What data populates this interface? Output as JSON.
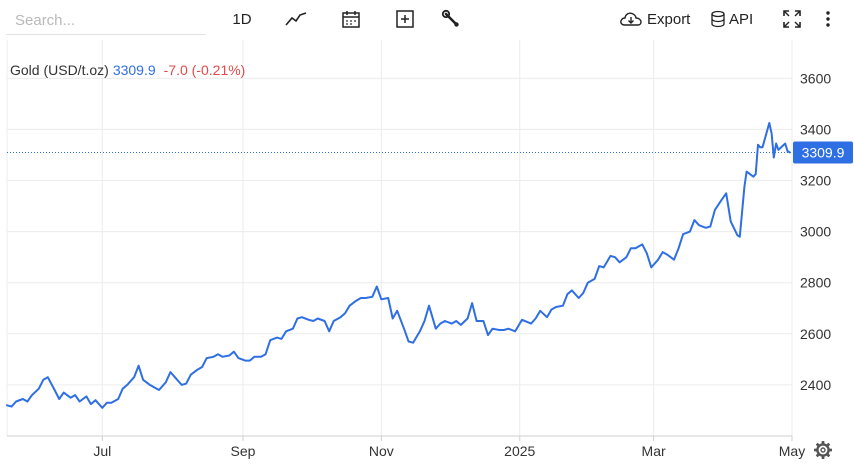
{
  "toolbar": {
    "search_placeholder": "Search...",
    "period_label": "1D",
    "export_label": "Export",
    "api_label": "API",
    "icons": [
      "line-chart-icon",
      "calendar-icon",
      "plus-square-icon",
      "wrench-icon",
      "cloud-download-icon",
      "database-icon",
      "expand-icon",
      "more-vertical-icon",
      "gear-icon"
    ]
  },
  "legend": {
    "name": "Gold (USD/t.oz)",
    "price": "3309.9",
    "change": "-7.0 (-0.21%)"
  },
  "colors": {
    "series": "#2f6fe4",
    "negative": "#e24a4a",
    "grid": "#ececec",
    "axis_text": "#333333"
  },
  "chart_data": {
    "type": "line",
    "title": "",
    "xlabel": "",
    "ylabel": "",
    "ylim": [
      2200,
      3750
    ],
    "xlim": [
      "2024-05-20",
      "2025-05-01"
    ],
    "yticks": [
      2400,
      2600,
      2800,
      3000,
      3200,
      3400,
      3600
    ],
    "yticklabels": [
      "2400",
      "2600",
      "2800",
      "3000",
      "3200",
      "3400",
      "3600"
    ],
    "xticks": [
      "2024-07-01",
      "2024-09-01",
      "2024-11-01",
      "2025-01-01",
      "2025-03-01",
      "2025-05-01"
    ],
    "xticklabels": [
      "Jul",
      "Sep",
      "Nov",
      "2025",
      "Mar",
      "May"
    ],
    "grid": true,
    "last_price": 3309.9,
    "last_price_label": "3309.9",
    "series": [
      {
        "points": [
          [
            "2024-05-20",
            2320
          ],
          [
            "2024-05-22",
            2315
          ],
          [
            "2024-05-24",
            2335
          ],
          [
            "2024-05-27",
            2345
          ],
          [
            "2024-05-29",
            2335
          ],
          [
            "2024-05-31",
            2360
          ],
          [
            "2024-06-03",
            2385
          ],
          [
            "2024-06-05",
            2420
          ],
          [
            "2024-06-07",
            2430
          ],
          [
            "2024-06-10",
            2380
          ],
          [
            "2024-06-12",
            2345
          ],
          [
            "2024-06-14",
            2370
          ],
          [
            "2024-06-17",
            2350
          ],
          [
            "2024-06-19",
            2360
          ],
          [
            "2024-06-21",
            2335
          ],
          [
            "2024-06-24",
            2355
          ],
          [
            "2024-06-26",
            2325
          ],
          [
            "2024-06-28",
            2340
          ],
          [
            "2024-07-01",
            2310
          ],
          [
            "2024-07-03",
            2330
          ],
          [
            "2024-07-05",
            2330
          ],
          [
            "2024-07-08",
            2345
          ],
          [
            "2024-07-10",
            2385
          ],
          [
            "2024-07-12",
            2400
          ],
          [
            "2024-07-15",
            2430
          ],
          [
            "2024-07-17",
            2475
          ],
          [
            "2024-07-19",
            2420
          ],
          [
            "2024-07-22",
            2400
          ],
          [
            "2024-07-24",
            2390
          ],
          [
            "2024-07-26",
            2380
          ],
          [
            "2024-07-29",
            2410
          ],
          [
            "2024-07-31",
            2450
          ],
          [
            "2024-08-02",
            2430
          ],
          [
            "2024-08-05",
            2400
          ],
          [
            "2024-08-07",
            2405
          ],
          [
            "2024-08-09",
            2440
          ],
          [
            "2024-08-12",
            2460
          ],
          [
            "2024-08-14",
            2470
          ],
          [
            "2024-08-16",
            2505
          ],
          [
            "2024-08-19",
            2510
          ],
          [
            "2024-08-21",
            2520
          ],
          [
            "2024-08-23",
            2510
          ],
          [
            "2024-08-26",
            2515
          ],
          [
            "2024-08-28",
            2530
          ],
          [
            "2024-08-30",
            2505
          ],
          [
            "2024-09-02",
            2495
          ],
          [
            "2024-09-04",
            2495
          ],
          [
            "2024-09-06",
            2510
          ],
          [
            "2024-09-09",
            2510
          ],
          [
            "2024-09-11",
            2520
          ],
          [
            "2024-09-13",
            2575
          ],
          [
            "2024-09-16",
            2585
          ],
          [
            "2024-09-18",
            2580
          ],
          [
            "2024-09-20",
            2610
          ],
          [
            "2024-09-23",
            2620
          ],
          [
            "2024-09-25",
            2660
          ],
          [
            "2024-09-27",
            2665
          ],
          [
            "2024-09-30",
            2655
          ],
          [
            "2024-10-02",
            2650
          ],
          [
            "2024-10-04",
            2660
          ],
          [
            "2024-10-07",
            2650
          ],
          [
            "2024-10-09",
            2610
          ],
          [
            "2024-10-11",
            2650
          ],
          [
            "2024-10-14",
            2665
          ],
          [
            "2024-10-16",
            2680
          ],
          [
            "2024-10-18",
            2710
          ],
          [
            "2024-10-21",
            2730
          ],
          [
            "2024-10-23",
            2740
          ],
          [
            "2024-10-25",
            2740
          ],
          [
            "2024-10-28",
            2745
          ],
          [
            "2024-10-30",
            2785
          ],
          [
            "2024-11-01",
            2735
          ],
          [
            "2024-11-04",
            2740
          ],
          [
            "2024-11-06",
            2660
          ],
          [
            "2024-11-08",
            2690
          ],
          [
            "2024-11-11",
            2620
          ],
          [
            "2024-11-13",
            2570
          ],
          [
            "2024-11-15",
            2565
          ],
          [
            "2024-11-18",
            2610
          ],
          [
            "2024-11-20",
            2650
          ],
          [
            "2024-11-22",
            2710
          ],
          [
            "2024-11-25",
            2620
          ],
          [
            "2024-11-27",
            2640
          ],
          [
            "2024-11-29",
            2650
          ],
          [
            "2024-12-02",
            2640
          ],
          [
            "2024-12-04",
            2650
          ],
          [
            "2024-12-06",
            2635
          ],
          [
            "2024-12-09",
            2660
          ],
          [
            "2024-12-11",
            2720
          ],
          [
            "2024-12-13",
            2650
          ],
          [
            "2024-12-16",
            2650
          ],
          [
            "2024-12-18",
            2595
          ],
          [
            "2024-12-20",
            2620
          ],
          [
            "2024-12-23",
            2615
          ],
          [
            "2024-12-25",
            2615
          ],
          [
            "2024-12-27",
            2620
          ],
          [
            "2024-12-30",
            2610
          ],
          [
            "2025-01-02",
            2655
          ],
          [
            "2025-01-06",
            2640
          ],
          [
            "2025-01-08",
            2660
          ],
          [
            "2025-01-10",
            2690
          ],
          [
            "2025-01-13",
            2665
          ],
          [
            "2025-01-15",
            2695
          ],
          [
            "2025-01-17",
            2705
          ],
          [
            "2025-01-20",
            2710
          ],
          [
            "2025-01-22",
            2755
          ],
          [
            "2025-01-24",
            2770
          ],
          [
            "2025-01-27",
            2740
          ],
          [
            "2025-01-29",
            2760
          ],
          [
            "2025-01-31",
            2800
          ],
          [
            "2025-02-03",
            2815
          ],
          [
            "2025-02-05",
            2865
          ],
          [
            "2025-02-07",
            2860
          ],
          [
            "2025-02-10",
            2905
          ],
          [
            "2025-02-12",
            2900
          ],
          [
            "2025-02-14",
            2880
          ],
          [
            "2025-02-17",
            2900
          ],
          [
            "2025-02-19",
            2935
          ],
          [
            "2025-02-21",
            2935
          ],
          [
            "2025-02-24",
            2950
          ],
          [
            "2025-02-26",
            2915
          ],
          [
            "2025-02-28",
            2860
          ],
          [
            "2025-03-03",
            2890
          ],
          [
            "2025-03-05",
            2920
          ],
          [
            "2025-03-07",
            2910
          ],
          [
            "2025-03-10",
            2890
          ],
          [
            "2025-03-12",
            2935
          ],
          [
            "2025-03-14",
            2990
          ],
          [
            "2025-03-17",
            3000
          ],
          [
            "2025-03-19",
            3045
          ],
          [
            "2025-03-21",
            3025
          ],
          [
            "2025-03-24",
            3015
          ],
          [
            "2025-03-26",
            3020
          ],
          [
            "2025-03-28",
            3085
          ],
          [
            "2025-03-31",
            3125
          ],
          [
            "2025-04-02",
            3150
          ],
          [
            "2025-04-04",
            3040
          ],
          [
            "2025-04-07",
            2985
          ],
          [
            "2025-04-08",
            2980
          ],
          [
            "2025-04-10",
            3175
          ],
          [
            "2025-04-11",
            3235
          ],
          [
            "2025-04-14",
            3215
          ],
          [
            "2025-04-15",
            3225
          ],
          [
            "2025-04-16",
            3340
          ],
          [
            "2025-04-17",
            3330
          ],
          [
            "2025-04-18",
            3330
          ],
          [
            "2025-04-21",
            3425
          ],
          [
            "2025-04-22",
            3385
          ],
          [
            "2025-04-23",
            3290
          ],
          [
            "2025-04-24",
            3345
          ],
          [
            "2025-04-25",
            3320
          ],
          [
            "2025-04-28",
            3345
          ],
          [
            "2025-04-29",
            3315
          ],
          [
            "2025-04-30",
            3310
          ]
        ]
      }
    ]
  }
}
